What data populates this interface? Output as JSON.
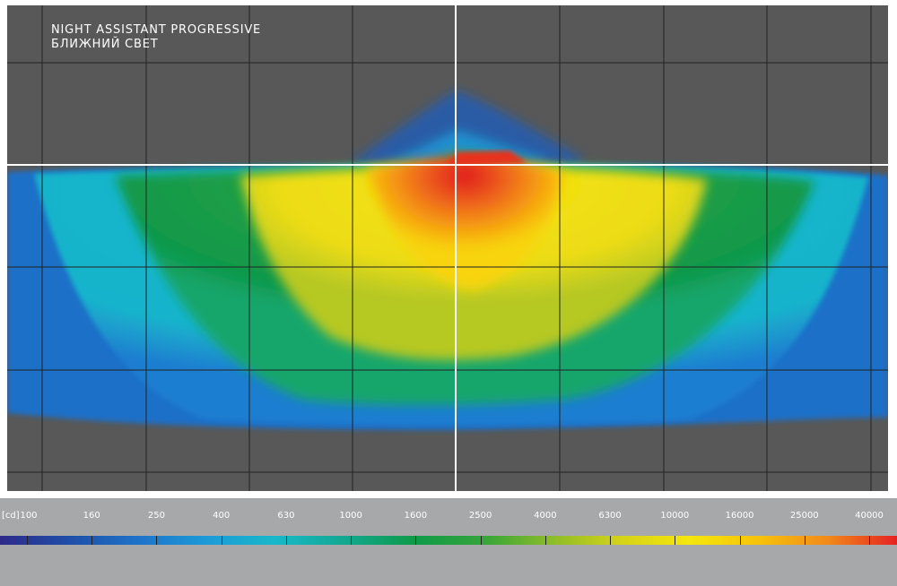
{
  "title": {
    "line1": "NIGHT ASSISTANT PROGRESSIVE",
    "line2": "БЛИЖНИЙ СВЕТ"
  },
  "chart_data": {
    "type": "heatmap",
    "unit": "[cd]",
    "scale": "log",
    "legend_values": [
      100,
      160,
      250,
      400,
      630,
      1000,
      1600,
      2500,
      4000,
      6300,
      10000,
      16000,
      25000,
      40000
    ],
    "legend_labels": [
      "100",
      "160",
      "250",
      "400",
      "630",
      "1000",
      "1600",
      "2500",
      "4000",
      "6300",
      "10000",
      "16000",
      "25000",
      "40000"
    ],
    "colors": [
      "#2e2a8a",
      "#1f4ea8",
      "#1e73c8",
      "#1c9ad8",
      "#19b8c8",
      "#12a890",
      "#0f9a4a",
      "#35a43a",
      "#8cbc2a",
      "#d6d218",
      "#f5e60c",
      "#f7c20c",
      "#f18a1a",
      "#e52222"
    ],
    "background_color": "#585858",
    "grid_color": "#222222",
    "axis_color": "#ffffff"
  }
}
